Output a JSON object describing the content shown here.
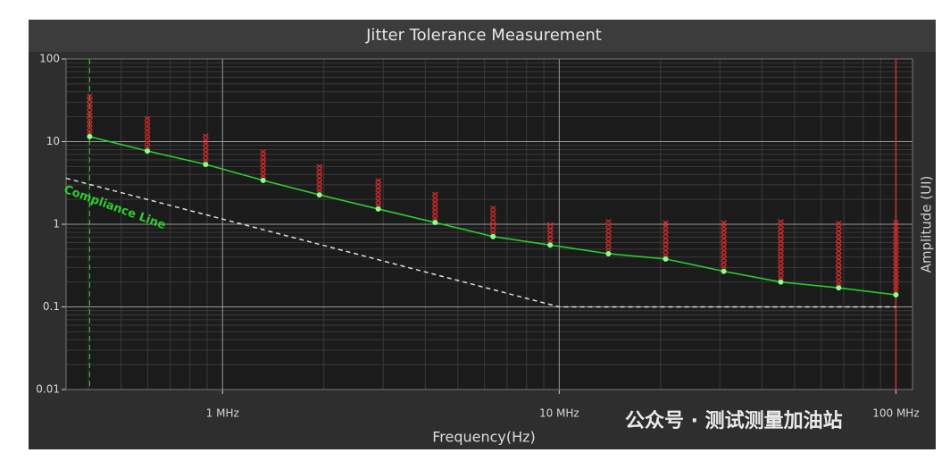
{
  "chart_data": {
    "type": "jitter-tolerance",
    "title": "Jitter Tolerance Measurement",
    "x_label": "Frequency(Hz)",
    "y_label": "Amplitude (UI)",
    "log_x": true,
    "log_y": true,
    "grid": true,
    "xlim": [
      343000,
      112000000
    ],
    "xticks": [
      {
        "value": 1000000,
        "label": "1 MHz"
      },
      {
        "value": 10000000,
        "label": "10 MHz"
      },
      {
        "value": 100000000,
        "label": "100 MHz"
      }
    ],
    "ylim": [
      0.01,
      100
    ],
    "yticks": [
      100,
      10,
      1,
      0.1,
      0.01
    ],
    "measured": {
      "color": "#2ecc2e",
      "x": [
        403000,
        598000,
        891000,
        1320000,
        1940000,
        2900000,
        4280000,
        6360000,
        9400000,
        14000000,
        20700000,
        30800000,
        45500000,
        67600000,
        100000000
      ],
      "values": [
        11.5,
        7.7,
        5.3,
        3.4,
        2.27,
        1.53,
        1.05,
        0.71,
        0.56,
        0.44,
        0.38,
        0.27,
        0.2,
        0.17,
        0.14
      ]
    },
    "failures": {
      "color": "#d42a2a",
      "values": [
        38,
        21,
        12.4,
        7.9,
        5.4,
        3.7,
        2.5,
        1.7,
        1.1,
        1.1,
        1.1,
        1.1,
        1.1,
        1.1,
        1.1
      ]
    },
    "compliance": {
      "label": "Compliance Line",
      "color": "#dddddd",
      "x": [
        343000,
        10000000,
        100000000
      ],
      "values": [
        3.6,
        0.1,
        0.1
      ]
    },
    "watermark": "公众号 · 测试测量加油站"
  }
}
